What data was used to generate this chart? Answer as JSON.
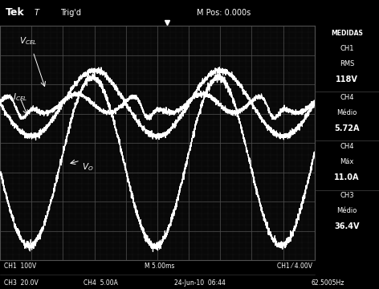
{
  "bg_color": "#000000",
  "screen_bg": "#080808",
  "grid_color": "#505050",
  "dot_color": "#303030",
  "text_color": "#ffffff",
  "signal_color": "#ffffff",
  "sidebar_bg": "#000000",
  "title_text": "Tek",
  "trig_text": "T  Trig’d",
  "mpos_text": "M Pos: 0.000s",
  "medidas_text": "MEDIDAS",
  "ch1_rms_val": "118V",
  "ch4_medio_val": "5.72A",
  "ch4_max_val": "11.0A",
  "ch3_medio_val": "36.4V",
  "bottom_ch1": "CH1  100V",
  "bottom_m": "M 5.00ms",
  "bottom_ch1_trig": "CH1 ⁄ 4.00V",
  "bottom_ch3": "CH3  20.0V",
  "bottom_ch4": "CH4  5.00A",
  "bottom_date": "24-Jun-10  06:44",
  "bottom_freq": "62.5005Hz",
  "n_points": 3000,
  "freq": 62.5,
  "time_total": 0.04,
  "grid_nx": 10,
  "grid_ny": 8,
  "vcel_dc": 0.17,
  "vcel_ripple_amp": 0.04,
  "vcel_notch_depth": 0.09,
  "icel_dc": 0.17,
  "icel_ac_amp": 0.14,
  "vo_dc": -0.08,
  "vo_amp": 0.36
}
